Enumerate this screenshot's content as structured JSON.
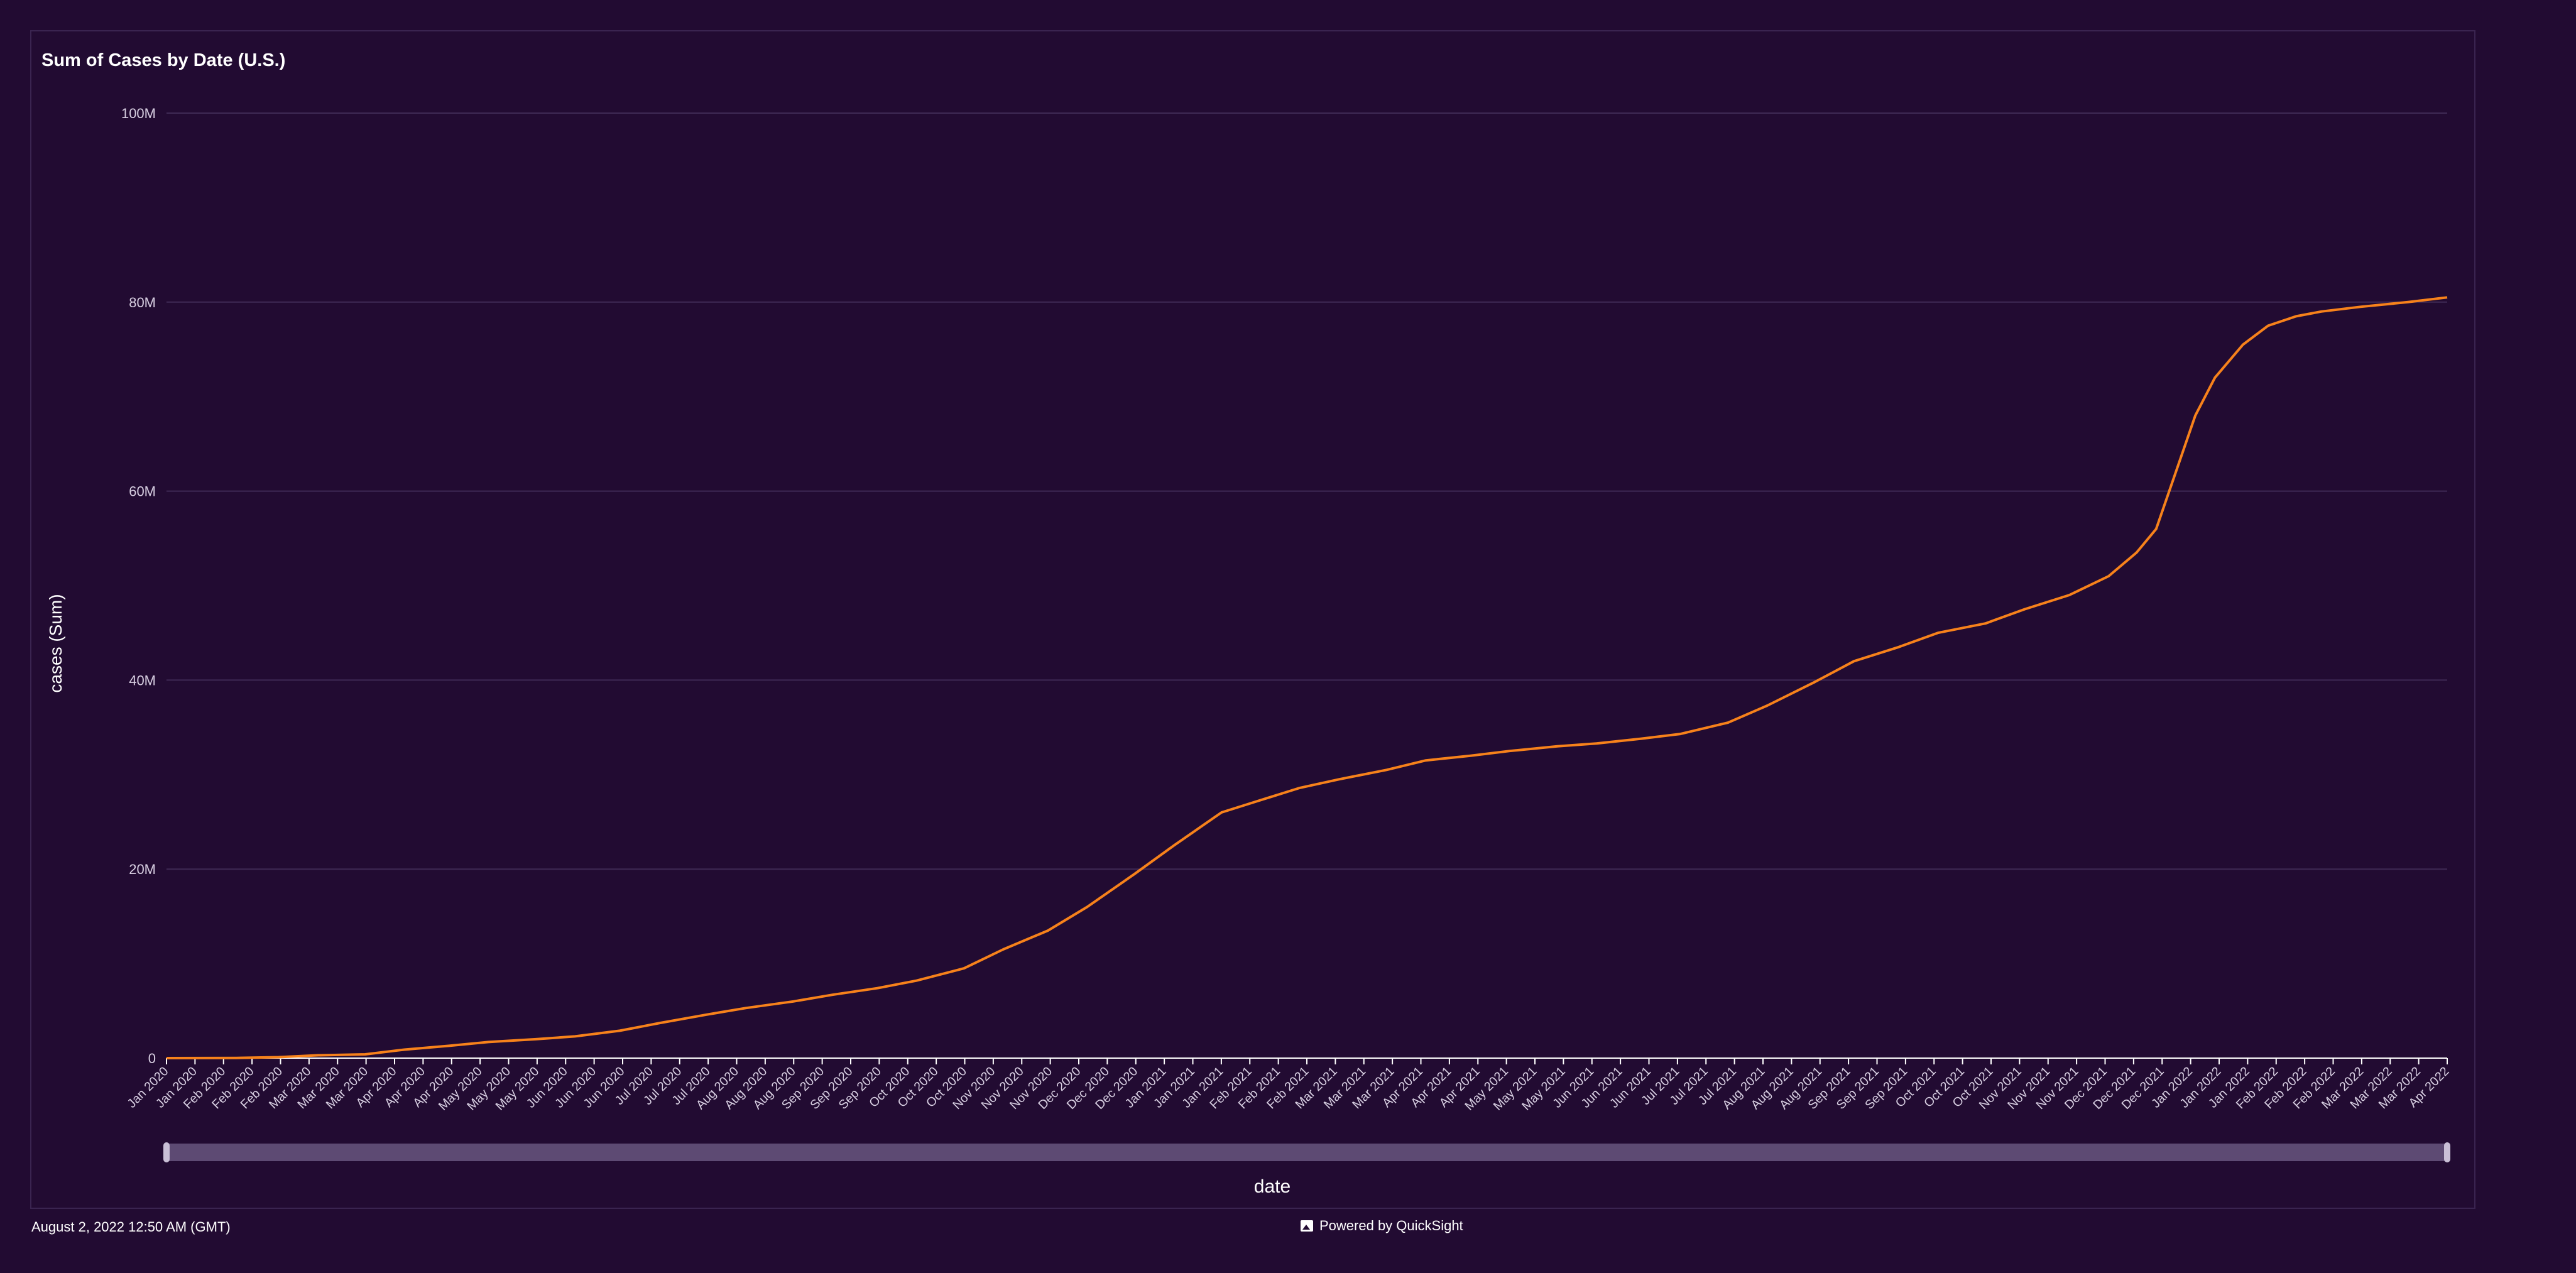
{
  "footer": {
    "timestamp": "August 2, 2022 12:50 AM (GMT)",
    "powered_by": "Powered by QuickSight"
  },
  "chart_data": {
    "type": "line",
    "title": "Sum of Cases by Date (U.S.)",
    "xlabel": "date",
    "ylabel": "cases (Sum)",
    "y_tick_labels": [
      "0",
      "20M",
      "40M",
      "60M",
      "80M",
      "100M"
    ],
    "ylim": [
      0,
      100000000
    ],
    "y_ticks": [
      0,
      20000000,
      40000000,
      60000000,
      80000000,
      100000000
    ],
    "grid": true,
    "legend": "none",
    "line_color": "#f7821b",
    "x_tick_labels": [
      "Jan 2020",
      "Jan 2020",
      "Feb 2020",
      "Feb 2020",
      "Feb 2020",
      "Mar 2020",
      "Mar 2020",
      "Mar 2020",
      "Apr 2020",
      "Apr 2020",
      "Apr 2020",
      "May 2020",
      "May 2020",
      "May 2020",
      "Jun 2020",
      "Jun 2020",
      "Jun 2020",
      "Jul 2020",
      "Jul 2020",
      "Jul 2020",
      "Aug 2020",
      "Aug 2020",
      "Aug 2020",
      "Sep 2020",
      "Sep 2020",
      "Sep 2020",
      "Oct 2020",
      "Oct 2020",
      "Oct 2020",
      "Nov 2020",
      "Nov 2020",
      "Nov 2020",
      "Dec 2020",
      "Dec 2020",
      "Dec 2020",
      "Jan 2021",
      "Jan 2021",
      "Jan 2021",
      "Feb 2021",
      "Feb 2021",
      "Feb 2021",
      "Mar 2021",
      "Mar 2021",
      "Mar 2021",
      "Apr 2021",
      "Apr 2021",
      "Apr 2021",
      "May 2021",
      "May 2021",
      "May 2021",
      "Jun 2021",
      "Jun 2021",
      "Jun 2021",
      "Jul 2021",
      "Jul 2021",
      "Jul 2021",
      "Aug 2021",
      "Aug 2021",
      "Aug 2021",
      "Sep 2021",
      "Sep 2021",
      "Sep 2021",
      "Oct 2021",
      "Oct 2021",
      "Oct 2021",
      "Nov 2021",
      "Nov 2021",
      "Nov 2021",
      "Dec 2021",
      "Dec 2021",
      "Dec 2021",
      "Jan 2022",
      "Jan 2022",
      "Jan 2022",
      "Feb 2022",
      "Feb 2022",
      "Feb 2022",
      "Mar 2022",
      "Mar 2022",
      "Mar 2022",
      "Apr 2022"
    ],
    "series": [
      {
        "x": [
          "2020-01-21",
          "2020-02-15",
          "2020-03-01",
          "2020-03-15",
          "2020-04-01",
          "2020-04-15",
          "2020-05-01",
          "2020-05-15",
          "2020-06-01",
          "2020-06-15",
          "2020-07-01",
          "2020-07-15",
          "2020-08-01",
          "2020-08-15",
          "2020-09-01",
          "2020-09-15",
          "2020-10-01",
          "2020-10-15",
          "2020-11-01",
          "2020-11-15",
          "2020-12-01",
          "2020-12-15",
          "2021-01-01",
          "2021-01-15",
          "2021-02-01",
          "2021-02-15",
          "2021-03-01",
          "2021-03-15",
          "2021-04-01",
          "2021-04-15",
          "2021-05-01",
          "2021-05-15",
          "2021-06-01",
          "2021-06-15",
          "2021-07-01",
          "2021-07-15",
          "2021-08-01",
          "2021-08-15",
          "2021-09-01",
          "2021-09-15",
          "2021-10-01",
          "2021-10-15",
          "2021-11-01",
          "2021-11-15",
          "2021-12-01",
          "2021-12-15",
          "2021-12-25",
          "2022-01-01",
          "2022-01-08",
          "2022-01-15",
          "2022-01-22",
          "2022-02-01",
          "2022-02-10",
          "2022-02-20",
          "2022-03-01",
          "2022-03-15",
          "2022-04-01",
          "2022-04-15"
        ],
        "values": [
          0,
          20000,
          100000,
          300000,
          400000,
          900000,
          1300000,
          1700000,
          2000000,
          2300000,
          2900000,
          3700000,
          4600000,
          5300000,
          6000000,
          6700000,
          7400000,
          8200000,
          9500000,
          11500000,
          13500000,
          16000000,
          19500000,
          22500000,
          26000000,
          27300000,
          28600000,
          29500000,
          30500000,
          31500000,
          32000000,
          32500000,
          33000000,
          33300000,
          33800000,
          34300000,
          35500000,
          37300000,
          39800000,
          42000000,
          43500000,
          45000000,
          46000000,
          47500000,
          49000000,
          51000000,
          53500000,
          56000000,
          62000000,
          68000000,
          72000000,
          75500000,
          77500000,
          78500000,
          79000000,
          79500000,
          80000000,
          80500000
        ]
      }
    ]
  }
}
